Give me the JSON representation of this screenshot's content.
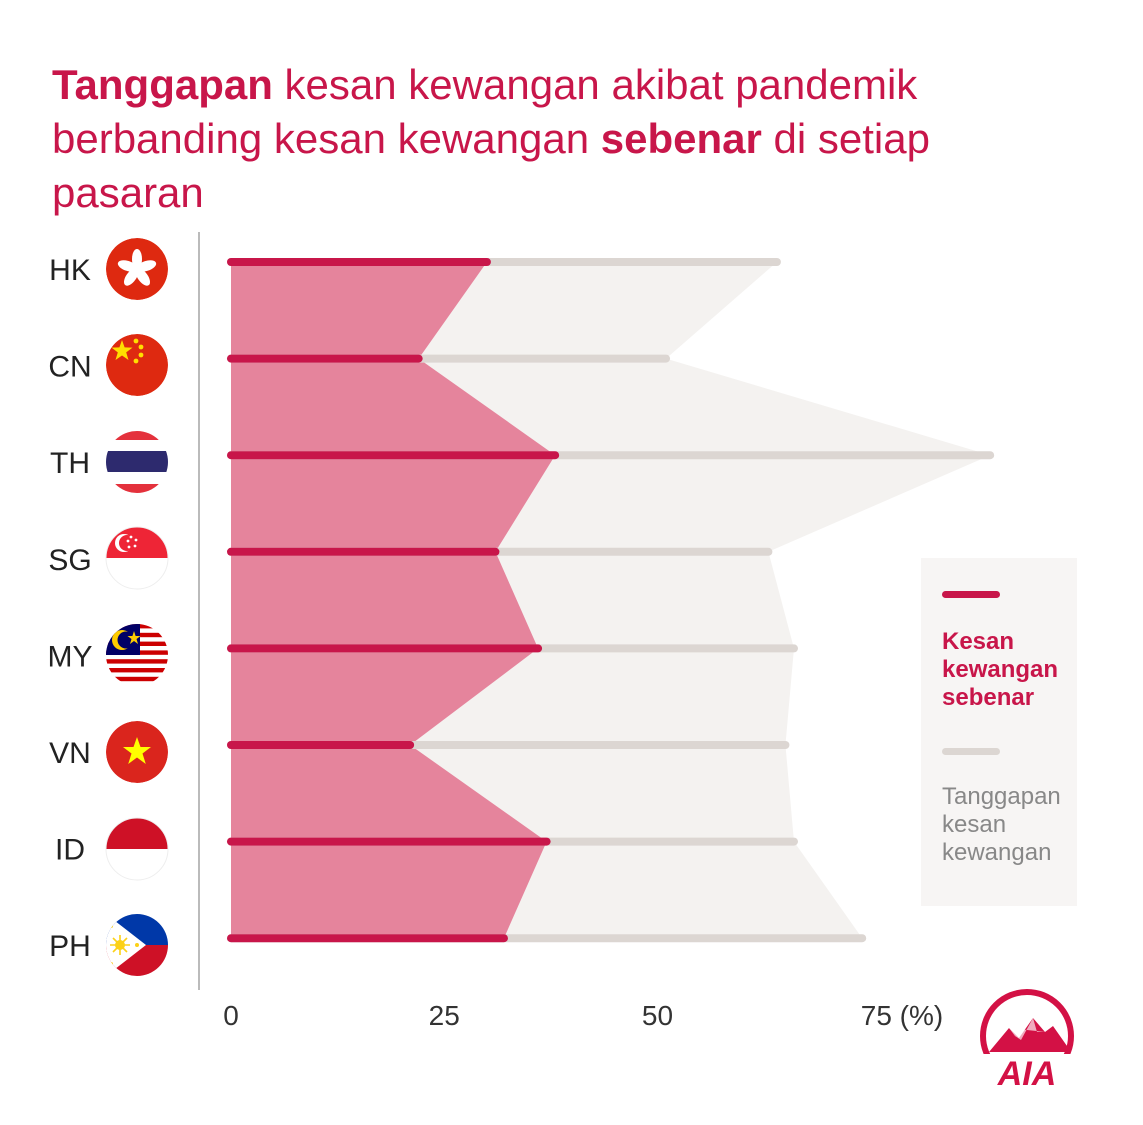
{
  "title": {
    "bold1": "Tanggapan",
    "mid": " kesan kewangan akibat pandemik berbanding kesan kewangan ",
    "bold2": "sebenar",
    "end": " di setiap pasaran"
  },
  "chart_data": {
    "type": "bar",
    "orientation": "horizontal",
    "categories": [
      "HK",
      "CN",
      "TH",
      "SG",
      "MY",
      "VN",
      "ID",
      "PH"
    ],
    "series": [
      {
        "name": "Kesan kewangan sebenar",
        "values": [
          30,
          22,
          38,
          31,
          36,
          21,
          37,
          32
        ]
      },
      {
        "name": "Tanggapan kesan kewangan",
        "values": [
          64,
          51,
          89,
          63,
          66,
          65,
          66,
          74
        ]
      }
    ],
    "x_ticks": [
      "0",
      "25",
      "50",
      "75 (%)"
    ],
    "x_tick_values": [
      0,
      25,
      50,
      75
    ],
    "xlim": [
      0,
      90
    ],
    "legend_position": "right"
  },
  "legend": {
    "actual": "Kesan kewangan sebenar",
    "perceived": "Tanggapan kesan kewangan"
  },
  "logo": {
    "text": "AIA"
  },
  "colors": {
    "accent": "#c8164a",
    "actual_fill": "#e5849c",
    "perceived_fill": "#f4f2f0",
    "perceived_line": "#dcd6d2"
  }
}
